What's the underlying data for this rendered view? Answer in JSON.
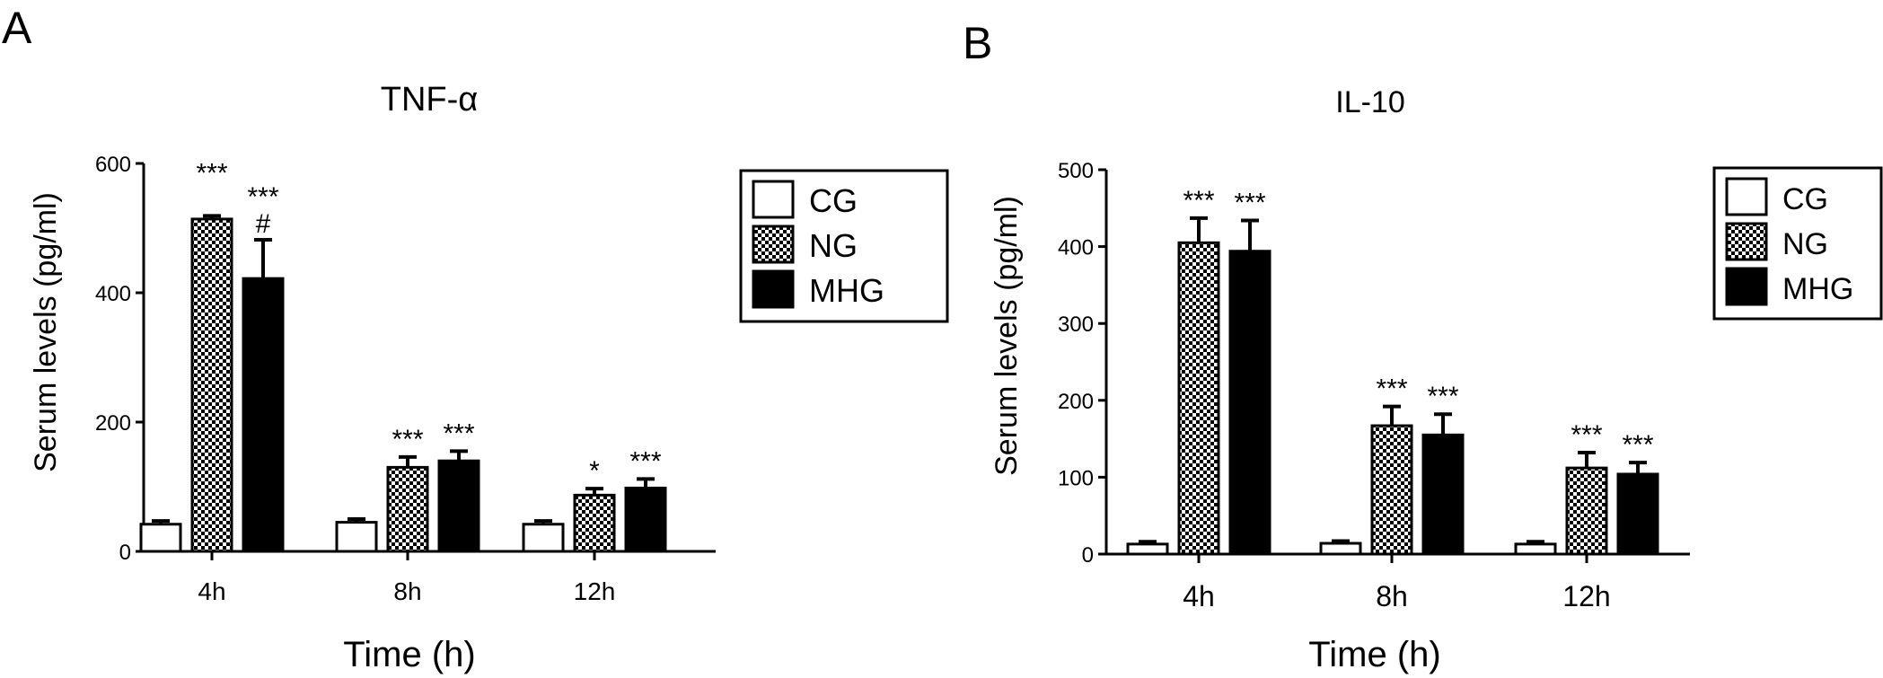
{
  "panels": [
    {
      "panel_label": "A",
      "chart_data": {
        "type": "bar",
        "title": "TNF-α",
        "xlabel": "Time (h)",
        "ylabel": "Serum levels (pg/ml)",
        "categories": [
          "4h",
          "8h",
          "12h"
        ],
        "ylim": [
          0,
          600
        ],
        "yticks": [
          0,
          200,
          400,
          600
        ],
        "legend_position": "top-right",
        "series": [
          {
            "name": "CG",
            "pattern": "open",
            "values": [
              42,
              45,
              42
            ],
            "errors": [
              5,
              5,
              5
            ]
          },
          {
            "name": "NG",
            "pattern": "checker",
            "values": [
              514,
              130,
              87
            ],
            "errors": [
              5,
              16,
              10
            ]
          },
          {
            "name": "MHG",
            "pattern": "solid",
            "values": [
              422,
              140,
              98
            ],
            "errors": [
              60,
              15,
              14
            ]
          }
        ],
        "annotations": [
          {
            "category": 0,
            "series": 1,
            "text": "***"
          },
          {
            "category": 0,
            "series": 2,
            "text": "***"
          },
          {
            "category": 0,
            "series": 2,
            "text": "#",
            "row": 1
          },
          {
            "category": 1,
            "series": 1,
            "text": "***"
          },
          {
            "category": 1,
            "series": 2,
            "text": "***"
          },
          {
            "category": 2,
            "series": 1,
            "text": "*"
          },
          {
            "category": 2,
            "series": 2,
            "text": "***"
          }
        ]
      }
    },
    {
      "panel_label": "B",
      "chart_data": {
        "type": "bar",
        "title": "IL-10",
        "xlabel": "Time (h)",
        "ylabel": "Serum levels (pg/ml)",
        "categories": [
          "4h",
          "8h",
          "12h"
        ],
        "ylim": [
          0,
          500
        ],
        "yticks": [
          0,
          100,
          200,
          300,
          400,
          500
        ],
        "legend_position": "top-right",
        "series": [
          {
            "name": "CG",
            "pattern": "open",
            "values": [
              13,
              14,
              13
            ],
            "errors": [
              3,
              3,
              3
            ]
          },
          {
            "name": "NG",
            "pattern": "checker",
            "values": [
              405,
              167,
              112
            ],
            "errors": [
              32,
              25,
              20
            ]
          },
          {
            "name": "MHG",
            "pattern": "solid",
            "values": [
              394,
              155,
              104
            ],
            "errors": [
              40,
              27,
              15
            ]
          }
        ],
        "annotations": [
          {
            "category": 0,
            "series": 1,
            "text": "***"
          },
          {
            "category": 0,
            "series": 2,
            "text": "***"
          },
          {
            "category": 1,
            "series": 1,
            "text": "***"
          },
          {
            "category": 1,
            "series": 2,
            "text": "***"
          },
          {
            "category": 2,
            "series": 1,
            "text": "***"
          },
          {
            "category": 2,
            "series": 2,
            "text": "***"
          }
        ]
      }
    }
  ]
}
